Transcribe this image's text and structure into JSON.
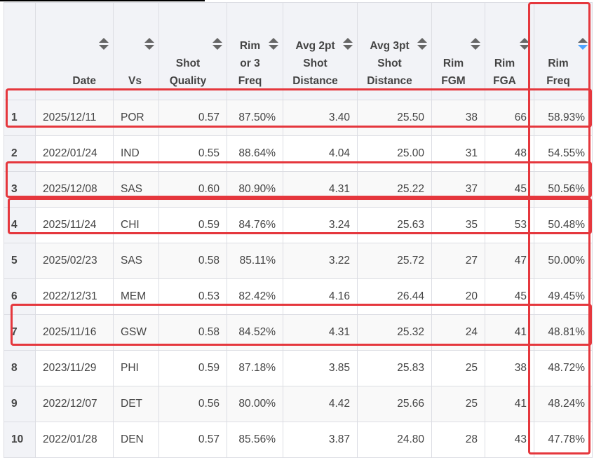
{
  "columns": [
    "",
    "Date",
    "Vs",
    "Shot Quality",
    "Rim or 3 Freq",
    "Avg 2pt Shot Distance",
    "Avg 3pt Shot Distance",
    "Rim FGM",
    "Rim FGA",
    "Rim Freq"
  ],
  "sorted_column": "Rim Freq",
  "sort_direction": "descending",
  "sort_active_color": "#4da3ff",
  "highlight_color": "#e5373d",
  "rows": [
    [
      "1",
      "2025/12/11",
      "POR",
      "0.57",
      "87.50%",
      "3.40",
      "25.50",
      "38",
      "66",
      "58.93%"
    ],
    [
      "2",
      "2022/01/24",
      "IND",
      "0.55",
      "88.64%",
      "4.04",
      "25.00",
      "31",
      "48",
      "54.55%"
    ],
    [
      "3",
      "2025/12/08",
      "SAS",
      "0.60",
      "80.90%",
      "4.31",
      "25.22",
      "37",
      "45",
      "50.56%"
    ],
    [
      "4",
      "2025/11/24",
      "CHI",
      "0.59",
      "84.76%",
      "3.24",
      "25.63",
      "35",
      "53",
      "50.48%"
    ],
    [
      "5",
      "2025/02/23",
      "SAS",
      "0.58",
      "85.11%",
      "3.22",
      "25.72",
      "27",
      "47",
      "50.00%"
    ],
    [
      "6",
      "2022/12/31",
      "MEM",
      "0.53",
      "82.42%",
      "4.16",
      "26.44",
      "20",
      "45",
      "49.45%"
    ],
    [
      "7",
      "2025/11/16",
      "GSW",
      "0.58",
      "84.52%",
      "4.31",
      "25.32",
      "24",
      "41",
      "48.81%"
    ],
    [
      "8",
      "2023/11/29",
      "PHI",
      "0.59",
      "87.18%",
      "3.85",
      "25.83",
      "25",
      "38",
      "48.72%"
    ],
    [
      "9",
      "2022/12/07",
      "DET",
      "0.56",
      "80.00%",
      "4.42",
      "25.66",
      "25",
      "41",
      "48.24%"
    ],
    [
      "10",
      "2022/01/28",
      "DEN",
      "0.57",
      "85.56%",
      "3.87",
      "24.80",
      "28",
      "43",
      "47.78%"
    ]
  ],
  "highlighted_rows": [
    "1",
    "3",
    "4",
    "7"
  ]
}
